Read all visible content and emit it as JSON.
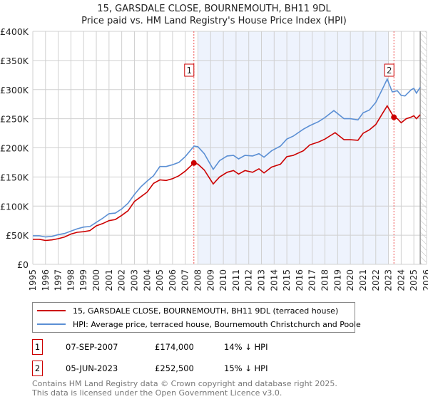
{
  "chart_data": {
    "type": "line",
    "title": "15, GARSDALE CLOSE, BOURNEMOUTH, BH11 9DL",
    "subtitle": "Price paid vs. HM Land Registry's House Price Index (HPI)",
    "xlim": [
      1995,
      2026
    ],
    "ylim": [
      0,
      400000
    ],
    "yticks": [
      {
        "v": 0,
        "label": "£0"
      },
      {
        "v": 50000,
        "label": "£50K"
      },
      {
        "v": 100000,
        "label": "£100K"
      },
      {
        "v": 150000,
        "label": "£150K"
      },
      {
        "v": 200000,
        "label": "£200K"
      },
      {
        "v": 250000,
        "label": "£250K"
      },
      {
        "v": 300000,
        "label": "£300K"
      },
      {
        "v": 350000,
        "label": "£350K"
      },
      {
        "v": 400000,
        "label": "£400K"
      }
    ],
    "xticks": [
      "1995",
      "1996",
      "1997",
      "1998",
      "1999",
      "2000",
      "2001",
      "2002",
      "2003",
      "2004",
      "2005",
      "2006",
      "2007",
      "2008",
      "2009",
      "2010",
      "2011",
      "2012",
      "2013",
      "2014",
      "2015",
      "2016",
      "2017",
      "2018",
      "2019",
      "2020",
      "2021",
      "2022",
      "2023",
      "2024",
      "2025",
      "2026"
    ],
    "grid": true,
    "shaded_range": [
      2008.0,
      2023.0
    ],
    "hatched_from": 2025.5,
    "series": [
      {
        "name": "15, GARSDALE CLOSE, BOURNEMOUTH, BH11 9DL (terraced house)",
        "color": "#cc0000",
        "points": [
          [
            1995,
            43000
          ],
          [
            1995.5,
            43000
          ],
          [
            1996,
            41000
          ],
          [
            1996.5,
            42000
          ],
          [
            1997,
            44000
          ],
          [
            1997.5,
            47000
          ],
          [
            1998,
            52000
          ],
          [
            1998.5,
            55000
          ],
          [
            1999,
            56000
          ],
          [
            1999.5,
            58000
          ],
          [
            2000,
            66000
          ],
          [
            2000.5,
            70000
          ],
          [
            2001,
            75000
          ],
          [
            2001.5,
            77000
          ],
          [
            2002,
            84000
          ],
          [
            2002.5,
            92000
          ],
          [
            2003,
            108000
          ],
          [
            2003.5,
            116000
          ],
          [
            2004,
            124000
          ],
          [
            2004.5,
            139000
          ],
          [
            2005,
            145000
          ],
          [
            2005.5,
            144000
          ],
          [
            2006,
            147000
          ],
          [
            2006.5,
            152000
          ],
          [
            2007,
            160000
          ],
          [
            2007.68,
            174000
          ],
          [
            2008,
            172000
          ],
          [
            2008.5,
            162000
          ],
          [
            2009.2,
            138000
          ],
          [
            2009.7,
            150000
          ],
          [
            2010.3,
            158000
          ],
          [
            2010.8,
            161000
          ],
          [
            2011.2,
            155000
          ],
          [
            2011.7,
            161000
          ],
          [
            2012.3,
            158000
          ],
          [
            2012.8,
            164000
          ],
          [
            2013.2,
            157000
          ],
          [
            2013.8,
            167000
          ],
          [
            2014.5,
            172000
          ],
          [
            2015,
            185000
          ],
          [
            2015.5,
            187000
          ],
          [
            2016.3,
            195000
          ],
          [
            2016.8,
            205000
          ],
          [
            2017.5,
            210000
          ],
          [
            2018,
            215000
          ],
          [
            2018.5,
            222000
          ],
          [
            2018.8,
            226000
          ],
          [
            2019.5,
            214000
          ],
          [
            2020,
            214000
          ],
          [
            2020.6,
            213000
          ],
          [
            2021,
            225000
          ],
          [
            2021.5,
            231000
          ],
          [
            2022,
            240000
          ],
          [
            2022.5,
            258000
          ],
          [
            2022.9,
            272000
          ],
          [
            2023.43,
            252500
          ],
          [
            2023.7,
            250000
          ],
          [
            2024,
            243000
          ],
          [
            2024.4,
            250000
          ],
          [
            2024.8,
            253000
          ],
          [
            2025,
            255000
          ],
          [
            2025.2,
            250000
          ],
          [
            2025.5,
            257000
          ]
        ]
      },
      {
        "name": "HPI: Average price, terraced house, Bournemouth Christchurch and Poole",
        "color": "#5b8fd4",
        "points": [
          [
            1995,
            49000
          ],
          [
            1995.5,
            49000
          ],
          [
            1996,
            47000
          ],
          [
            1996.5,
            48000
          ],
          [
            1997,
            51000
          ],
          [
            1997.5,
            53000
          ],
          [
            1998,
            57000
          ],
          [
            1998.5,
            61000
          ],
          [
            1999,
            64000
          ],
          [
            1999.5,
            65000
          ],
          [
            2000,
            72000
          ],
          [
            2000.5,
            79000
          ],
          [
            2001,
            87000
          ],
          [
            2001.5,
            88000
          ],
          [
            2002,
            95000
          ],
          [
            2002.5,
            105000
          ],
          [
            2003,
            120000
          ],
          [
            2003.5,
            133000
          ],
          [
            2004,
            143000
          ],
          [
            2004.5,
            152000
          ],
          [
            2005,
            168000
          ],
          [
            2005.5,
            168000
          ],
          [
            2006,
            171000
          ],
          [
            2006.5,
            175000
          ],
          [
            2007,
            185000
          ],
          [
            2007.7,
            203000
          ],
          [
            2008,
            202000
          ],
          [
            2008.5,
            190000
          ],
          [
            2009.2,
            163000
          ],
          [
            2009.7,
            178000
          ],
          [
            2010.3,
            186000
          ],
          [
            2010.8,
            187000
          ],
          [
            2011.2,
            181000
          ],
          [
            2011.7,
            187000
          ],
          [
            2012.3,
            186000
          ],
          [
            2012.8,
            190000
          ],
          [
            2013.2,
            184000
          ],
          [
            2013.8,
            195000
          ],
          [
            2014.5,
            203000
          ],
          [
            2015,
            215000
          ],
          [
            2015.5,
            220000
          ],
          [
            2016.3,
            232000
          ],
          [
            2016.8,
            238000
          ],
          [
            2017.5,
            245000
          ],
          [
            2018,
            252000
          ],
          [
            2018.7,
            264000
          ],
          [
            2019.5,
            250000
          ],
          [
            2020,
            250000
          ],
          [
            2020.6,
            248000
          ],
          [
            2021,
            260000
          ],
          [
            2021.5,
            265000
          ],
          [
            2022,
            278000
          ],
          [
            2022.5,
            300000
          ],
          [
            2022.9,
            318000
          ],
          [
            2023.3,
            296000
          ],
          [
            2023.7,
            298000
          ],
          [
            2024,
            290000
          ],
          [
            2024.3,
            289000
          ],
          [
            2024.8,
            300000
          ],
          [
            2025,
            302000
          ],
          [
            2025.2,
            294000
          ],
          [
            2025.5,
            304000
          ]
        ]
      }
    ],
    "sales": [
      {
        "label": "1",
        "year": 2007.68,
        "value": 174000,
        "date": "07-SEP-2007",
        "price": "£174,000",
        "hpi_diff": "14% ↓ HPI"
      },
      {
        "label": "2",
        "year": 2023.43,
        "value": 252500,
        "date": "05-JUN-2023",
        "price": "£252,500",
        "hpi_diff": "15% ↓ HPI"
      }
    ],
    "legend_position": "below"
  },
  "footer": {
    "line1": "Contains HM Land Registry data © Crown copyright and database right 2025.",
    "line2": "This data is licensed under the Open Government Licence v3.0."
  }
}
